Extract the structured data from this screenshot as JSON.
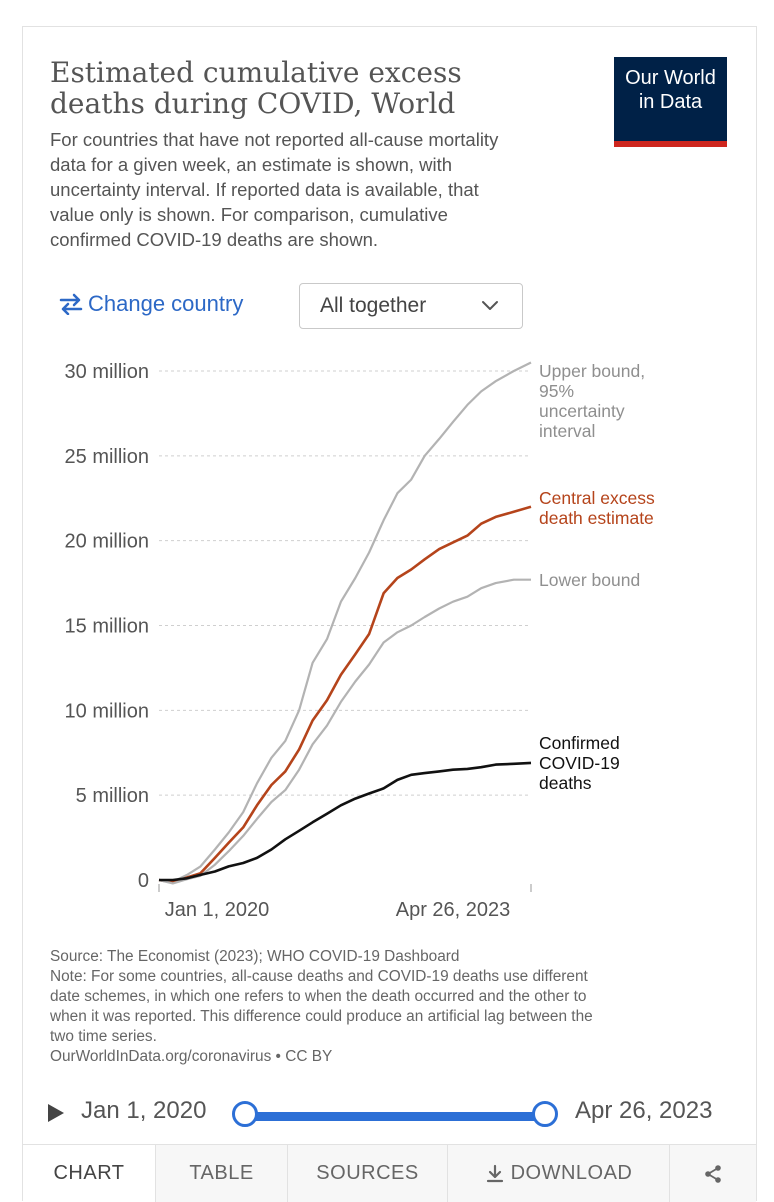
{
  "header": {
    "title_lines": [
      "Estimated cumulative excess",
      "deaths during COVID, World"
    ],
    "logo_lines": [
      "Our World",
      "in Data"
    ],
    "subtitle_lines": [
      "For countries that have not reported all-cause mortality",
      "data for a given week, an estimate is shown, with",
      "uncertainty interval. If reported data is available, that",
      "value only is shown. For comparison, cumulative",
      "confirmed COVID-19 deaths are shown."
    ]
  },
  "controls": {
    "change_country_label": "Change country",
    "select_value": "All together"
  },
  "chart_data": {
    "type": "line",
    "x_ticks": [
      "Jan 1, 2020",
      "Apr 26, 2023"
    ],
    "xlim": [
      "2020-01-01",
      "2023-04-26"
    ],
    "y_ticks": [
      {
        "value": 0,
        "label": "0"
      },
      {
        "value": 5000000,
        "label": "5 million"
      },
      {
        "value": 10000000,
        "label": "10 million"
      },
      {
        "value": 15000000,
        "label": "15 million"
      },
      {
        "value": 20000000,
        "label": "20 million"
      },
      {
        "value": 25000000,
        "label": "25 million"
      },
      {
        "value": 30000000,
        "label": "30 million"
      }
    ],
    "ylim": [
      0,
      30000000
    ],
    "grid": "horizontal",
    "series": [
      {
        "name": "Upper bound, 95% uncertainty interval",
        "label_lines": [
          "Upper bound,",
          "95%",
          "uncertainty",
          "interval"
        ],
        "color": "#b3b3b3",
        "points": [
          [
            "2020-01-01",
            0
          ],
          [
            "2020-02-15",
            -100000
          ],
          [
            "2020-04-01",
            300000
          ],
          [
            "2020-05-15",
            800000
          ],
          [
            "2020-07-01",
            1800000
          ],
          [
            "2020-08-15",
            2800000
          ],
          [
            "2020-10-01",
            4000000
          ],
          [
            "2020-11-15",
            5700000
          ],
          [
            "2021-01-01",
            7200000
          ],
          [
            "2021-02-15",
            8200000
          ],
          [
            "2021-04-01",
            10000000
          ],
          [
            "2021-05-15",
            12800000
          ],
          [
            "2021-07-01",
            14200000
          ],
          [
            "2021-08-15",
            16400000
          ],
          [
            "2021-10-01",
            17800000
          ],
          [
            "2021-11-15",
            19300000
          ],
          [
            "2022-01-01",
            21200000
          ],
          [
            "2022-02-15",
            22800000
          ],
          [
            "2022-04-01",
            23600000
          ],
          [
            "2022-05-15",
            25000000
          ],
          [
            "2022-07-01",
            26000000
          ],
          [
            "2022-08-15",
            27000000
          ],
          [
            "2022-10-01",
            28000000
          ],
          [
            "2022-11-15",
            28800000
          ],
          [
            "2023-01-01",
            29400000
          ],
          [
            "2023-03-01",
            30000000
          ],
          [
            "2023-04-26",
            30500000
          ]
        ]
      },
      {
        "name": "Central excess death estimate",
        "label_lines": [
          "Central excess",
          "death estimate"
        ],
        "color": "#b5441b",
        "points": [
          [
            "2020-01-01",
            0
          ],
          [
            "2020-02-15",
            -150000
          ],
          [
            "2020-04-01",
            150000
          ],
          [
            "2020-05-15",
            400000
          ],
          [
            "2020-07-01",
            1300000
          ],
          [
            "2020-08-15",
            2200000
          ],
          [
            "2020-10-01",
            3100000
          ],
          [
            "2020-11-15",
            4400000
          ],
          [
            "2021-01-01",
            5600000
          ],
          [
            "2021-02-15",
            6400000
          ],
          [
            "2021-04-01",
            7700000
          ],
          [
            "2021-05-15",
            9400000
          ],
          [
            "2021-07-01",
            10600000
          ],
          [
            "2021-08-15",
            12100000
          ],
          [
            "2021-10-01",
            13300000
          ],
          [
            "2021-11-15",
            14500000
          ],
          [
            "2022-01-01",
            16900000
          ],
          [
            "2022-02-15",
            17800000
          ],
          [
            "2022-04-01",
            18300000
          ],
          [
            "2022-05-15",
            18900000
          ],
          [
            "2022-07-01",
            19500000
          ],
          [
            "2022-08-15",
            19900000
          ],
          [
            "2022-10-01",
            20300000
          ],
          [
            "2022-11-15",
            21000000
          ],
          [
            "2023-01-01",
            21400000
          ],
          [
            "2023-03-01",
            21700000
          ],
          [
            "2023-04-26",
            22000000
          ]
        ]
      },
      {
        "name": "Lower bound",
        "label_lines": [
          "Lower bound"
        ],
        "color": "#b3b3b3",
        "points": [
          [
            "2020-01-01",
            0
          ],
          [
            "2020-02-15",
            -200000
          ],
          [
            "2020-04-01",
            50000
          ],
          [
            "2020-05-15",
            250000
          ],
          [
            "2020-07-01",
            900000
          ],
          [
            "2020-08-15",
            1700000
          ],
          [
            "2020-10-01",
            2600000
          ],
          [
            "2020-11-15",
            3600000
          ],
          [
            "2021-01-01",
            4600000
          ],
          [
            "2021-02-15",
            5300000
          ],
          [
            "2021-04-01",
            6500000
          ],
          [
            "2021-05-15",
            8000000
          ],
          [
            "2021-07-01",
            9100000
          ],
          [
            "2021-08-15",
            10500000
          ],
          [
            "2021-10-01",
            11700000
          ],
          [
            "2021-11-15",
            12700000
          ],
          [
            "2022-01-01",
            14000000
          ],
          [
            "2022-02-15",
            14600000
          ],
          [
            "2022-04-01",
            15000000
          ],
          [
            "2022-05-15",
            15500000
          ],
          [
            "2022-07-01",
            16000000
          ],
          [
            "2022-08-15",
            16400000
          ],
          [
            "2022-10-01",
            16700000
          ],
          [
            "2022-11-15",
            17200000
          ],
          [
            "2023-01-01",
            17500000
          ],
          [
            "2023-03-01",
            17700000
          ],
          [
            "2023-04-26",
            17700000
          ]
        ]
      },
      {
        "name": "Confirmed COVID-19 deaths",
        "label_lines": [
          "Confirmed",
          "COVID-19",
          "deaths"
        ],
        "color": "#111111",
        "points": [
          [
            "2020-01-01",
            0
          ],
          [
            "2020-02-15",
            0
          ],
          [
            "2020-04-01",
            100000
          ],
          [
            "2020-05-15",
            300000
          ],
          [
            "2020-07-01",
            500000
          ],
          [
            "2020-08-15",
            800000
          ],
          [
            "2020-10-01",
            1000000
          ],
          [
            "2020-11-15",
            1300000
          ],
          [
            "2021-01-01",
            1800000
          ],
          [
            "2021-02-15",
            2400000
          ],
          [
            "2021-04-01",
            2900000
          ],
          [
            "2021-05-15",
            3400000
          ],
          [
            "2021-07-01",
            3900000
          ],
          [
            "2021-08-15",
            4400000
          ],
          [
            "2021-10-01",
            4800000
          ],
          [
            "2021-11-15",
            5100000
          ],
          [
            "2022-01-01",
            5400000
          ],
          [
            "2022-02-15",
            5900000
          ],
          [
            "2022-04-01",
            6200000
          ],
          [
            "2022-05-15",
            6300000
          ],
          [
            "2022-07-01",
            6400000
          ],
          [
            "2022-08-15",
            6500000
          ],
          [
            "2022-10-01",
            6550000
          ],
          [
            "2022-11-15",
            6650000
          ],
          [
            "2023-01-01",
            6800000
          ],
          [
            "2023-03-01",
            6850000
          ],
          [
            "2023-04-26",
            6900000
          ]
        ]
      }
    ]
  },
  "footer": {
    "source_lines": [
      "Source: The Economist (2023); WHO COVID-19 Dashboard",
      "Note: For some countries, all-cause deaths and COVID-19 deaths use different",
      "date schemes, in which one refers to when the death occurred and the other to",
      "when it was reported. This difference could produce an artificial lag between the",
      "two time series.",
      "OurWorldInData.org/coronavirus • CC BY"
    ]
  },
  "timeline": {
    "start_label": "Jan 1, 2020",
    "end_label": "Apr 26, 2023",
    "selection_start": 0,
    "selection_end": 1
  },
  "tabs": [
    {
      "label": "CHART",
      "active": true
    },
    {
      "label": "TABLE",
      "active": false
    },
    {
      "label": "SOURCES",
      "active": false
    },
    {
      "label": "DOWNLOAD",
      "active": false
    }
  ]
}
